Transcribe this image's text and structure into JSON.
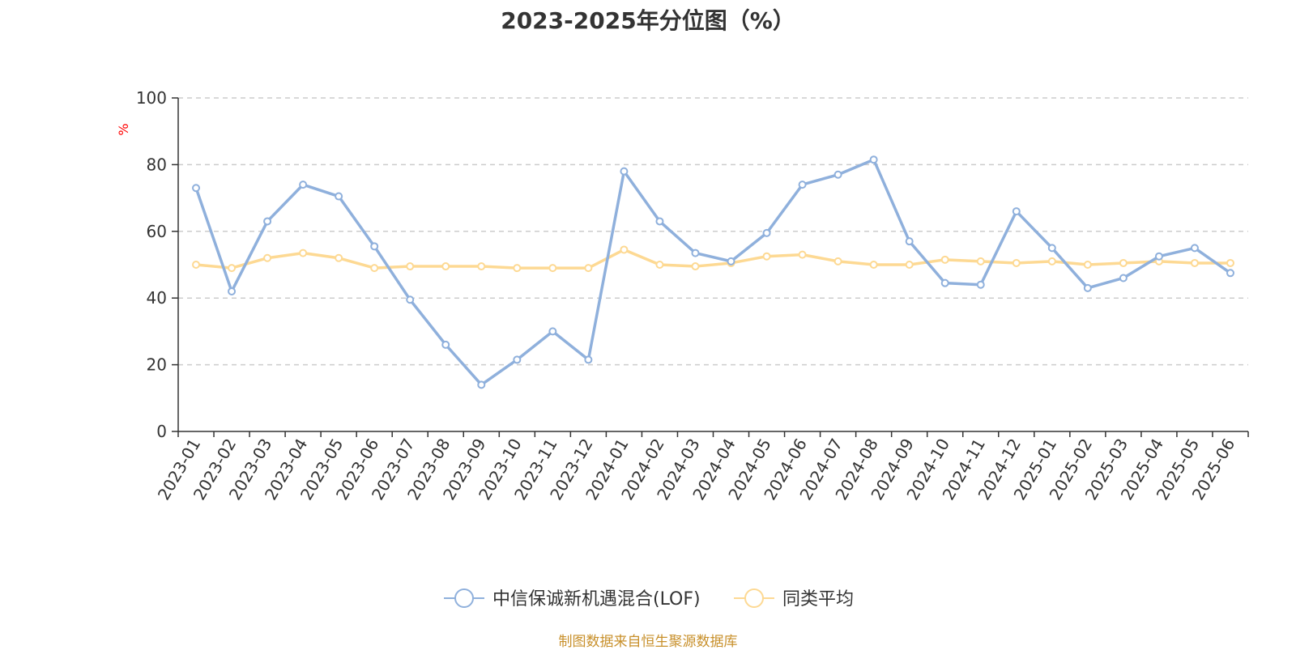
{
  "colors": {
    "series1": "#8fb0dc",
    "series2": "#fdd993",
    "source": "#c8902b",
    "axis_unit": "#ff0000"
  },
  "chart_data": {
    "type": "line",
    "title": "2023-2025年分位图（%）",
    "ylabel": "%",
    "ylim": [
      0,
      100
    ],
    "yticks": [
      "0",
      "20",
      "40",
      "60",
      "80",
      "100"
    ],
    "grid": true,
    "legend_position": "bottom",
    "categories": [
      "2023-01",
      "2023-02",
      "2023-03",
      "2023-04",
      "2023-05",
      "2023-06",
      "2023-07",
      "2023-08",
      "2023-09",
      "2023-10",
      "2023-11",
      "2023-12",
      "2024-01",
      "2024-02",
      "2024-03",
      "2024-04",
      "2024-05",
      "2024-06",
      "2024-07",
      "2024-08",
      "2024-09",
      "2024-10",
      "2024-11",
      "2024-12",
      "2025-01",
      "2025-02",
      "2025-03",
      "2025-04",
      "2025-05",
      "2025-06"
    ],
    "series": [
      {
        "name": "中信保诚新机遇混合(LOF)",
        "values": [
          73,
          42,
          63,
          74,
          70.5,
          55.5,
          39.5,
          26,
          14,
          21.5,
          30,
          21.5,
          78,
          63,
          53.5,
          51,
          59.5,
          74,
          77,
          81.5,
          57,
          44.5,
          44,
          66,
          55,
          43,
          46,
          52.5,
          55,
          47.5
        ]
      },
      {
        "name": "同类平均",
        "values": [
          50,
          49,
          52,
          53.5,
          52,
          49,
          49.5,
          49.5,
          49.5,
          49,
          49,
          49,
          54.5,
          50,
          49.5,
          50.5,
          52.5,
          53,
          51,
          50,
          50,
          51.5,
          51,
          50.5,
          51,
          50,
          50.5,
          51,
          50.5,
          50.5
        ]
      }
    ]
  },
  "source_text": "制图数据来自恒生聚源数据库"
}
